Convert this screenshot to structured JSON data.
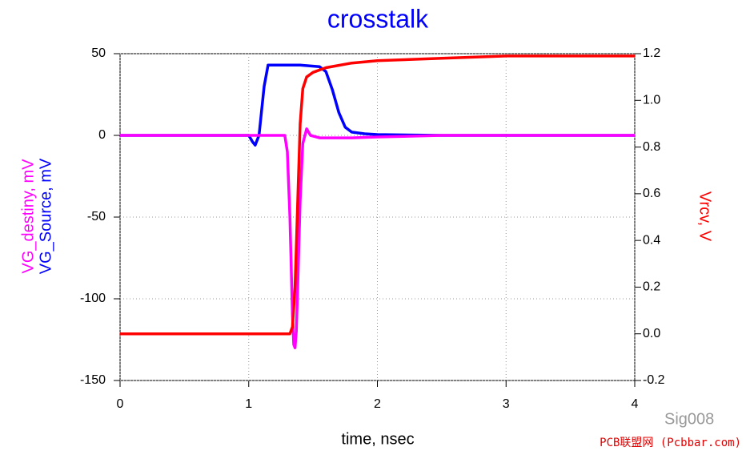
{
  "chart_data": {
    "type": "line",
    "title": "crosstalk",
    "x_label": "time, nsec",
    "y_labels": [
      "VG_destiny, mV",
      "VG_Source, mV"
    ],
    "y2_label": "Vrcv, V",
    "xlim": [
      0,
      4
    ],
    "xticks": [
      0,
      1,
      2,
      3,
      4
    ],
    "ylim": [
      -150,
      50
    ],
    "yticks": [
      -150,
      -100,
      -50,
      0,
      50
    ],
    "y2lim": [
      -0.2,
      1.2
    ],
    "y2ticks": [
      -0.2,
      {
        "value": 0,
        "label": "0.0"
      },
      0.2,
      0.4,
      0.6,
      0.8,
      {
        "value": 1,
        "label": "1.0"
      },
      1.2
    ],
    "grid": true,
    "series": [
      {
        "name": "VG_Source",
        "color": "#0000ff",
        "x": [
          0,
          1.0,
          1.03,
          1.05,
          1.08,
          1.12,
          1.15,
          1.2,
          1.4,
          1.55,
          1.6,
          1.65,
          1.7,
          1.75,
          1.8,
          1.9,
          2.0,
          2.5,
          4
        ],
        "values": [
          0,
          0,
          -4,
          -6,
          0,
          30,
          43,
          43,
          43,
          42,
          39,
          28,
          14,
          5,
          2,
          1,
          0.5,
          0,
          0
        ]
      },
      {
        "name": "VG_destiny",
        "color": "#ff00ff",
        "x": [
          0,
          1.28,
          1.3,
          1.32,
          1.34,
          1.35,
          1.36,
          1.37,
          1.38,
          1.4,
          1.42,
          1.45,
          1.48,
          1.55,
          1.8,
          2.0,
          2.5,
          4
        ],
        "values": [
          0,
          0,
          -10,
          -50,
          -110,
          -128,
          -130,
          -120,
          -95,
          -40,
          -5,
          4,
          0,
          -1.5,
          -1.5,
          -1,
          0,
          0
        ]
      },
      {
        "name": "Vrcv",
        "color": "#ff0000",
        "axis": "y2",
        "x": [
          0,
          1.32,
          1.34,
          1.36,
          1.38,
          1.4,
          1.42,
          1.45,
          1.5,
          1.6,
          1.8,
          2.0,
          2.5,
          3,
          4
        ],
        "values": [
          0,
          0,
          0.03,
          0.2,
          0.55,
          0.9,
          1.05,
          1.1,
          1.12,
          1.14,
          1.16,
          1.17,
          1.18,
          1.19,
          1.19
        ]
      }
    ],
    "watermark": [
      "Sig008",
      "PCB联盟网 (Pcbbar.com)"
    ]
  }
}
